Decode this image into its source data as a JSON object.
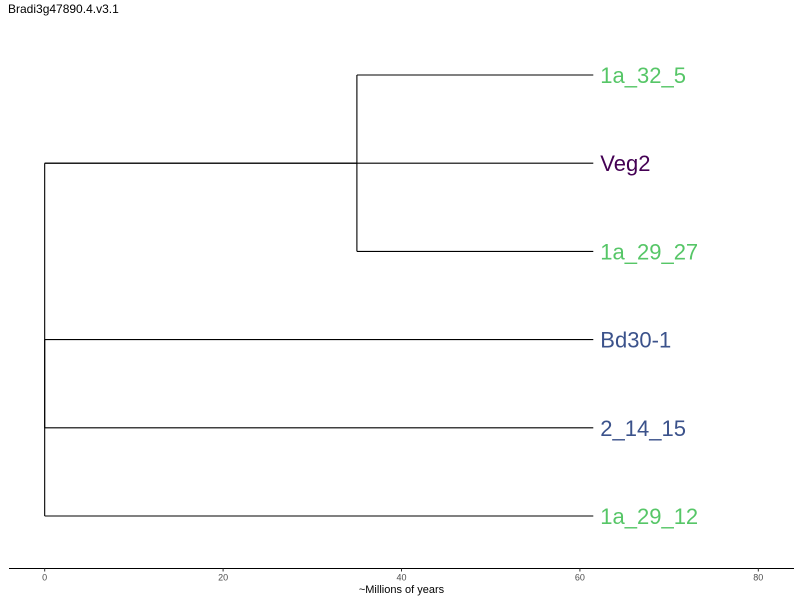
{
  "title": "Bradi3g47890.4.v3.1",
  "axis": {
    "label": "~Millions of years",
    "range": [
      -4,
      84
    ],
    "ticks": [
      0,
      20,
      40,
      60,
      80
    ]
  },
  "leaves": [
    {
      "id": "L1",
      "label": "1a_32_5",
      "color": "#56c667"
    },
    {
      "id": "L2",
      "label": "Veg2",
      "color": "#440154"
    },
    {
      "id": "L3",
      "label": "1a_29_27",
      "color": "#56c667"
    },
    {
      "id": "L4",
      "label": "Bd30-1",
      "color": "#3b528b"
    },
    {
      "id": "L5",
      "label": "2_14_15",
      "color": "#3b528b"
    },
    {
      "id": "L6",
      "label": "1a_29_12",
      "color": "#56c667"
    }
  ],
  "nodes": [
    {
      "id": "root",
      "x": 0,
      "children": [
        "N1",
        "N2",
        "L6"
      ]
    },
    {
      "id": "N1",
      "x": 0,
      "children": [
        "N3",
        "L2"
      ]
    },
    {
      "id": "N3",
      "x": 35,
      "children": [
        "L1",
        "L3"
      ]
    },
    {
      "id": "N2",
      "x": 0,
      "children": [
        "L4",
        "L5"
      ]
    }
  ],
  "leaf_x": 61.5
}
